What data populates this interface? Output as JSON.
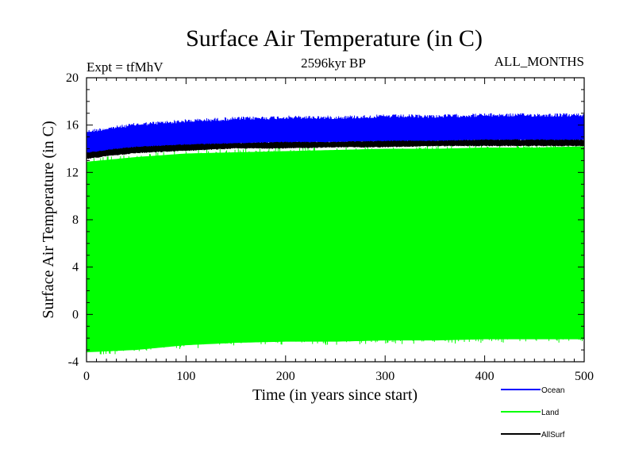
{
  "chart_data": {
    "type": "line",
    "title": "Surface Air Temperature (in C)",
    "subtitle": "2596kyr BP",
    "expt_label": "Expt = tfMhV",
    "months_label": "ALL_MONTHS",
    "xlabel": "Time (in years since start)",
    "ylabel": "Surface Air Temperature (in C)",
    "xlim": [
      0,
      500
    ],
    "ylim": [
      -4,
      20
    ],
    "xticks": [
      0,
      100,
      200,
      300,
      400,
      500
    ],
    "yticks": [
      -4,
      0,
      4,
      8,
      12,
      16,
      20
    ],
    "series": [
      {
        "name": "Ocean",
        "color": "#0000ff",
        "x": [
          0,
          25,
          50,
          100,
          150,
          200,
          250,
          300,
          350,
          400,
          450,
          500
        ],
        "low": [
          13.2,
          13.6,
          13.8,
          14.0,
          14.2,
          14.3,
          14.3,
          14.4,
          14.4,
          14.5,
          14.5,
          14.5
        ],
        "high": [
          15.6,
          15.9,
          16.2,
          16.5,
          16.7,
          16.8,
          16.8,
          16.9,
          16.9,
          17.0,
          17.0,
          17.0
        ]
      },
      {
        "name": "Land",
        "color": "#00ff00",
        "x": [
          0,
          25,
          50,
          100,
          150,
          200,
          250,
          300,
          350,
          400,
          450,
          500
        ],
        "low": [
          -3.5,
          -3.4,
          -3.3,
          -2.9,
          -2.7,
          -2.6,
          -2.6,
          -2.5,
          -2.5,
          -2.4,
          -2.4,
          -2.4
        ],
        "high": [
          13.2,
          13.4,
          13.6,
          13.9,
          14.0,
          14.1,
          14.2,
          14.3,
          14.3,
          14.4,
          14.4,
          14.5
        ]
      },
      {
        "name": "AllSurf",
        "color": "#000000",
        "x": [
          0,
          25,
          50,
          100,
          150,
          200,
          250,
          300,
          350,
          400,
          450,
          500
        ],
        "low": [
          13.1,
          13.4,
          13.6,
          13.8,
          14.0,
          14.0,
          14.1,
          14.1,
          14.2,
          14.2,
          14.2,
          14.2
        ],
        "high": [
          13.7,
          14.0,
          14.2,
          14.4,
          14.5,
          14.6,
          14.6,
          14.7,
          14.7,
          14.8,
          14.8,
          14.8
        ]
      }
    ]
  }
}
